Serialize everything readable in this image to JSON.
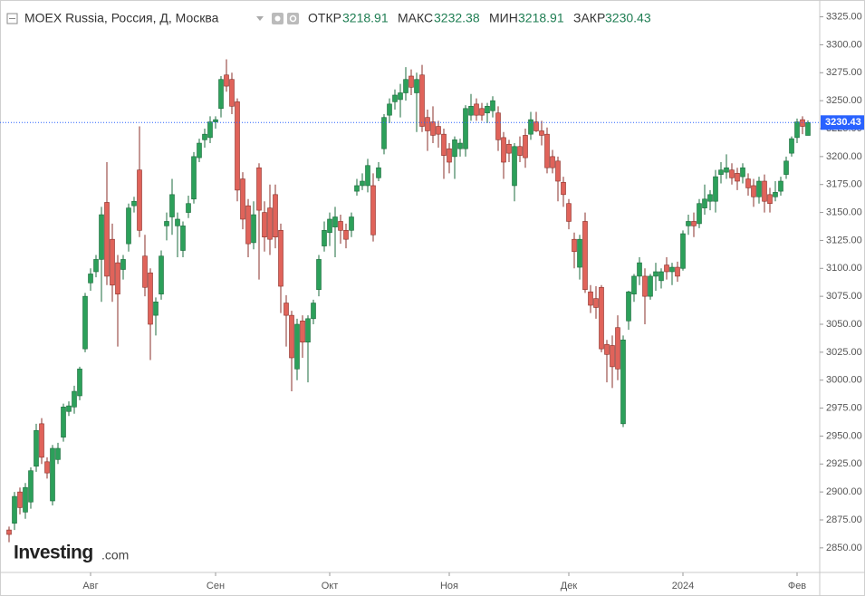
{
  "chart_data": {
    "type": "candlestick",
    "title": "MOEX Russia, Россия, Д, Москва",
    "ohlc_labels": [
      "ОТКР",
      "МАКС",
      "МИН",
      "ЗАКР"
    ],
    "logo": {
      "name": "Investing",
      "suffix": ".com"
    },
    "up_color": "#2ca05a",
    "down_color": "#e0635a",
    "last_price_color": "#2962ff",
    "grid": false,
    "ylim": [
      2828,
      3336
    ],
    "yticks": [
      {
        "value": 2850,
        "label": "2850.00"
      },
      {
        "value": 2875,
        "label": "2875.00"
      },
      {
        "value": 2900,
        "label": "2900.00"
      },
      {
        "value": 2925,
        "label": "2925.00"
      },
      {
        "value": 2950,
        "label": "2950.00"
      },
      {
        "value": 2975,
        "label": "2975.00"
      },
      {
        "value": 3000,
        "label": "3000.00"
      },
      {
        "value": 3025,
        "label": "3025.00"
      },
      {
        "value": 3050,
        "label": "3050.00"
      },
      {
        "value": 3075,
        "label": "3075.00"
      },
      {
        "value": 3100,
        "label": "3100.00"
      },
      {
        "value": 3125,
        "label": "3125.00"
      },
      {
        "value": 3150,
        "label": "3150.00"
      },
      {
        "value": 3175,
        "label": "3175.00"
      },
      {
        "value": 3200,
        "label": "3200.00"
      },
      {
        "value": 3225,
        "label": "3225.00"
      },
      {
        "value": 3250,
        "label": "3250.00"
      },
      {
        "value": 3275,
        "label": "3275.00"
      },
      {
        "value": 3300,
        "label": "3300.00"
      },
      {
        "value": 3325,
        "label": "3325.00"
      }
    ],
    "categories": [
      null,
      null,
      null,
      null,
      null,
      null,
      null,
      null,
      null,
      null,
      null,
      null,
      null,
      null,
      null,
      "Авг",
      null,
      null,
      null,
      null,
      null,
      null,
      null,
      null,
      null,
      null,
      null,
      null,
      null,
      null,
      null,
      null,
      null,
      null,
      null,
      null,
      null,
      null,
      "Сен",
      null,
      null,
      null,
      null,
      null,
      null,
      null,
      null,
      null,
      null,
      null,
      null,
      null,
      null,
      null,
      null,
      null,
      null,
      null,
      null,
      "Окт",
      null,
      null,
      null,
      null,
      null,
      null,
      null,
      null,
      null,
      null,
      null,
      null,
      null,
      null,
      null,
      null,
      null,
      null,
      null,
      null,
      null,
      "Ноя",
      null,
      null,
      null,
      null,
      null,
      null,
      null,
      null,
      null,
      null,
      null,
      null,
      null,
      null,
      null,
      null,
      null,
      null,
      null,
      null,
      null,
      "Дек",
      null,
      null,
      null,
      null,
      null,
      null,
      null,
      null,
      null,
      null,
      null,
      null,
      null,
      null,
      null,
      null,
      null,
      null,
      null,
      null,
      "2024",
      null,
      null,
      null,
      null,
      null,
      null,
      null,
      null,
      null,
      null,
      null,
      null,
      null,
      null,
      null,
      null,
      null,
      null,
      null,
      null,
      "Фев",
      null,
      null
    ],
    "open": [
      2866,
      2872,
      2900,
      2882,
      2891,
      2923,
      2961,
      2927,
      2892,
      2929,
      2949,
      2972,
      2976,
      2986,
      3028,
      3087,
      3097,
      3108,
      3159,
      3126,
      3105,
      3099,
      3122,
      3156,
      3188,
      3111,
      3096,
      3058,
      3077,
      3138,
      3146,
      3138,
      3116,
      3150,
      3162,
      3199,
      3215,
      3217,
      3231,
      3243,
      3273,
      3269,
      3249,
      3180,
      3156,
      3123,
      3190,
      3150,
      3154,
      3166,
      3134,
      3069,
      3058,
      3010,
      3053,
      3034,
      3055,
      3081,
      3120,
      3132,
      3137,
      3142,
      3134,
      3134,
      3169,
      3174,
      3174,
      3174,
      3181,
      3207,
      3237,
      3249,
      3251,
      3257,
      3272,
      3257,
      3273,
      3235,
      3231,
      3227,
      3220,
      3207,
      3200,
      3207,
      3207,
      3237,
      3247,
      3243,
      3239,
      3241,
      3239,
      3217,
      3211,
      3174,
      3209,
      3219,
      3220,
      3231,
      3223,
      3220,
      3200,
      3196,
      3177,
      3158,
      3126,
      3101,
      3142,
      3079,
      3073,
      3083,
      3032,
      3031,
      3047,
      2961,
      3053,
      3077,
      3093,
      3093,
      3075,
      3093,
      3089,
      3103,
      3097,
      3101,
      3100,
      3138,
      3142,
      3140,
      3154,
      3160,
      3160,
      3184,
      3186,
      3188,
      3185,
      3182,
      3180,
      3174,
      3164,
      3178,
      3166,
      3164,
      3169,
      3184,
      3203,
      3217,
      3233,
      3218.91
    ],
    "high": [
      2869,
      2900,
      2904,
      2908,
      2922,
      2961,
      2966,
      2931,
      2942,
      2944,
      2979,
      2981,
      2995,
      3012,
      3078,
      3100,
      3112,
      3155,
      3195,
      3140,
      3112,
      3112,
      3158,
      3164,
      3227,
      3130,
      3100,
      3074,
      3116,
      3150,
      3180,
      3150,
      3142,
      3165,
      3204,
      3216,
      3225,
      3236,
      3236,
      3272,
      3287,
      3275,
      3252,
      3186,
      3162,
      3160,
      3194,
      3160,
      3175,
      3175,
      3140,
      3076,
      3062,
      3055,
      3058,
      3058,
      3072,
      3112,
      3142,
      3150,
      3155,
      3148,
      3140,
      3150,
      3180,
      3185,
      3198,
      3185,
      3195,
      3238,
      3252,
      3260,
      3265,
      3280,
      3278,
      3275,
      3282,
      3242,
      3245,
      3232,
      3225,
      3212,
      3218,
      3216,
      3246,
      3256,
      3252,
      3248,
      3248,
      3254,
      3245,
      3222,
      3215,
      3212,
      3218,
      3225,
      3240,
      3240,
      3232,
      3226,
      3206,
      3200,
      3182,
      3162,
      3132,
      3130,
      3150,
      3085,
      3084,
      3085,
      3036,
      3040,
      3058,
      3040,
      3080,
      3095,
      3110,
      3100,
      3095,
      3105,
      3100,
      3110,
      3105,
      3106,
      3134,
      3148,
      3150,
      3162,
      3175,
      3170,
      3188,
      3195,
      3202,
      3194,
      3190,
      3194,
      3185,
      3180,
      3182,
      3184,
      3172,
      3178,
      3182,
      3200,
      3218,
      3234,
      3236,
      3232.38
    ],
    "low": [
      2855,
      2866,
      2880,
      2876,
      2885,
      2918,
      2925,
      2912,
      2888,
      2925,
      2945,
      2968,
      2970,
      2982,
      3025,
      3080,
      3092,
      3070,
      3085,
      3070,
      3030,
      3090,
      3115,
      3150,
      3128,
      3075,
      3018,
      3040,
      3072,
      3125,
      3130,
      3110,
      3110,
      3145,
      3158,
      3195,
      3208,
      3212,
      3225,
      3235,
      3258,
      3238,
      3160,
      3135,
      3110,
      3117,
      3090,
      3115,
      3112,
      3118,
      3060,
      3030,
      2990,
      3000,
      3020,
      2998,
      3050,
      3075,
      3115,
      3120,
      3110,
      3122,
      3118,
      3128,
      3165,
      3170,
      3168,
      3124,
      3178,
      3202,
      3230,
      3242,
      3235,
      3250,
      3255,
      3222,
      3222,
      3205,
      3212,
      3208,
      3180,
      3185,
      3180,
      3200,
      3200,
      3232,
      3232,
      3232,
      3230,
      3235,
      3205,
      3180,
      3195,
      3160,
      3195,
      3190,
      3215,
      3222,
      3210,
      3185,
      3185,
      3160,
      3155,
      3135,
      3100,
      3090,
      3078,
      3060,
      3055,
      3025,
      2998,
      2993,
      3000,
      2958,
      3045,
      3070,
      3085,
      3050,
      3072,
      3080,
      3082,
      3090,
      3085,
      3088,
      3098,
      3130,
      3128,
      3136,
      3148,
      3152,
      3150,
      3176,
      3180,
      3175,
      3170,
      3176,
      3165,
      3155,
      3158,
      3150,
      3150,
      3160,
      3165,
      3180,
      3200,
      3212,
      3220,
      3218.91
    ],
    "close": [
      2862,
      2896,
      2886,
      2904,
      2919,
      2955,
      2931,
      2917,
      2939,
      2939,
      2976,
      2977,
      2990,
      3010,
      3075,
      3095,
      3108,
      3148,
      3093,
      3085,
      3077,
      3108,
      3154,
      3160,
      3134,
      3083,
      3050,
      3070,
      3111,
      3142,
      3166,
      3144,
      3138,
      3158,
      3200,
      3212,
      3220,
      3231,
      3233,
      3269,
      3263,
      3245,
      3170,
      3144,
      3122,
      3148,
      3152,
      3128,
      3126,
      3128,
      3084,
      3058,
      3020,
      3050,
      3034,
      3055,
      3069,
      3108,
      3134,
      3144,
      3146,
      3134,
      3126,
      3146,
      3174,
      3178,
      3192,
      3130,
      3190,
      3235,
      3247,
      3255,
      3257,
      3269,
      3262,
      3269,
      3227,
      3223,
      3219,
      3220,
      3201,
      3195,
      3215,
      3212,
      3243,
      3245,
      3237,
      3237,
      3245,
      3250,
      3215,
      3195,
      3203,
      3209,
      3201,
      3199,
      3233,
      3223,
      3219,
      3190,
      3190,
      3178,
      3166,
      3142,
      3115,
      3126,
      3081,
      3067,
      3065,
      3028,
      3023,
      3012,
      3010,
      3036,
      3079,
      3093,
      3105,
      3075,
      3093,
      3097,
      3097,
      3097,
      3101,
      3093,
      3131,
      3142,
      3138,
      3158,
      3162,
      3166,
      3182,
      3188,
      3190,
      3181,
      3178,
      3190,
      3172,
      3164,
      3178,
      3160,
      3158,
      3168,
      3178,
      3196,
      3216,
      3231,
      3227,
      3230.43
    ]
  }
}
